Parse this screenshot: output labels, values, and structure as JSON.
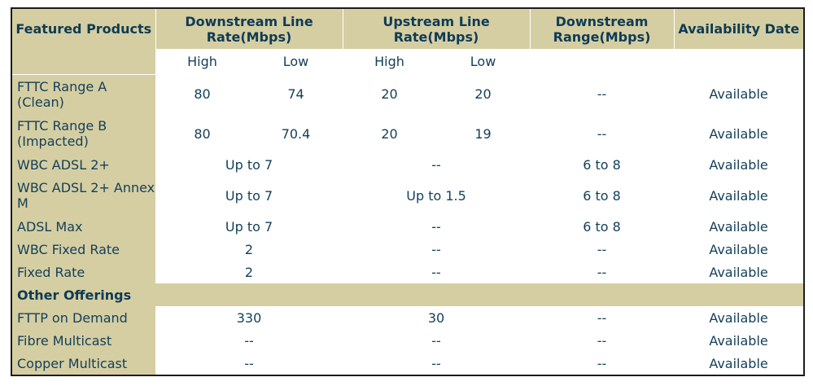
{
  "headers": {
    "featured_products": "Featured Products",
    "downstream_line_rate": "Downstream Line Rate(Mbps)",
    "upstream_line_rate": "Upstream Line Rate(Mbps)",
    "downstream_range": "Downstream Range(Mbps)",
    "availability_date": "Availability Date"
  },
  "subheaders": {
    "high": "High",
    "low": "Low"
  },
  "rows": [
    {
      "product": "FTTC Range A (Clean)",
      "down_high": "80",
      "down_low": "74",
      "up_high": "20",
      "up_low": "20",
      "range": "--",
      "availability": "Available"
    },
    {
      "product": "FTTC Range B (Impacted)",
      "down_high": "80",
      "down_low": "70.4",
      "up_high": "20",
      "up_low": "19",
      "range": "--",
      "availability": "Available"
    },
    {
      "product": "WBC ADSL 2+",
      "down": "Up to 7",
      "up": "--",
      "range": "6 to 8",
      "availability": "Available"
    },
    {
      "product": "WBC ADSL 2+ Annex M",
      "down": "Up to 7",
      "up": "Up to 1.5",
      "range": "6 to 8",
      "availability": "Available"
    },
    {
      "product": "ADSL Max",
      "down": "Up to 7",
      "up": "--",
      "range": "6 to 8",
      "availability": "Available"
    },
    {
      "product": "WBC Fixed Rate",
      "down": "2",
      "up": "--",
      "range": "--",
      "availability": "Available"
    },
    {
      "product": "Fixed Rate",
      "down": "2",
      "up": "--",
      "range": "--",
      "availability": "Available"
    }
  ],
  "section_title": "Other Offerings",
  "other_rows": [
    {
      "product": "FTTP on Demand",
      "down": "330",
      "up": "30",
      "range": "--",
      "availability": "Available"
    },
    {
      "product": "Fibre Multicast",
      "down": "--",
      "up": "--",
      "range": "--",
      "availability": "Available"
    },
    {
      "product": "Copper Multicast",
      "down": "--",
      "up": "--",
      "range": "--",
      "availability": "Available"
    }
  ],
  "colors": {
    "header_bg": "#d5cea2",
    "text": "#15405a",
    "border": "#1c1c1c"
  }
}
